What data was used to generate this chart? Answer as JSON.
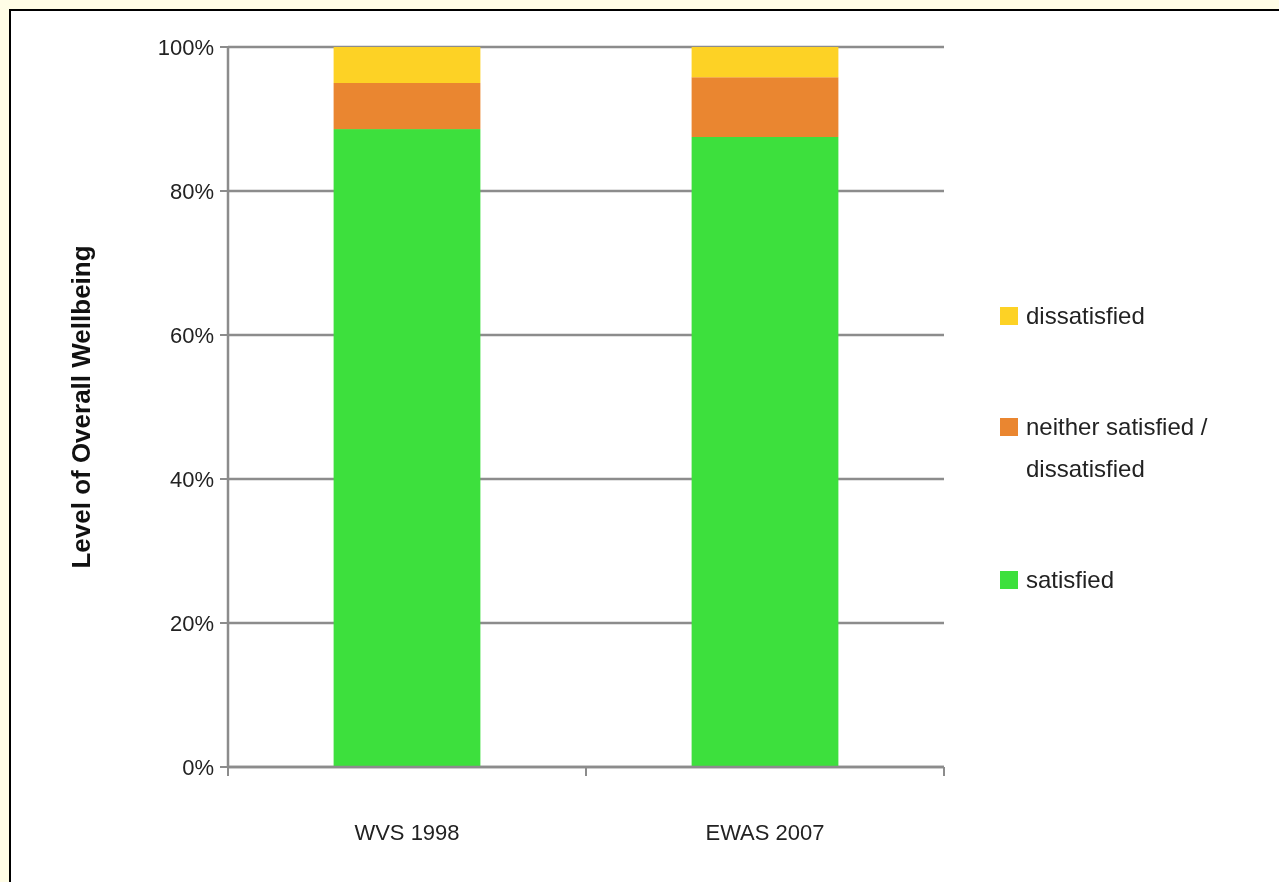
{
  "chart_data": {
    "type": "bar",
    "stacked": true,
    "ylabel": "Level of Overall Wellbeing",
    "categories": [
      "WVS 1998",
      "EWAS 2007"
    ],
    "series": [
      {
        "name": "satisfied",
        "color": "#3de03d",
        "values": [
          88.6,
          87.5
        ]
      },
      {
        "name": "neither satisfied / dissatisfied",
        "color": "#ea8630",
        "values": [
          6.4,
          8.3
        ]
      },
      {
        "name": "dissatisfied",
        "color": "#fdd225",
        "values": [
          5.0,
          4.2
        ]
      }
    ],
    "ylim": [
      0,
      100
    ],
    "yticks": [
      {
        "value": 0,
        "label": "0%"
      },
      {
        "value": 20,
        "label": "20%"
      },
      {
        "value": 40,
        "label": "40%"
      },
      {
        "value": 60,
        "label": "60%"
      },
      {
        "value": 80,
        "label": "80%"
      },
      {
        "value": 100,
        "label": "100%"
      }
    ],
    "grid": "y",
    "legend": "right"
  }
}
